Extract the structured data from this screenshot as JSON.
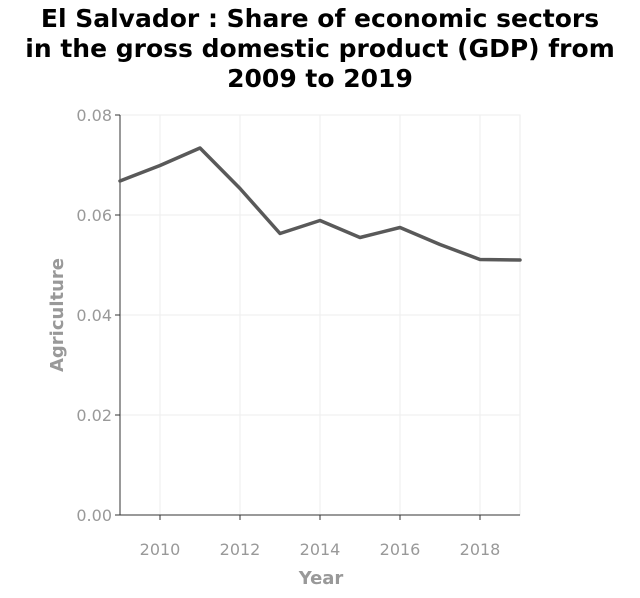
{
  "chart_data": {
    "type": "line",
    "title_lines": [
      "El Salvador : Share of economic sectors",
      "in the gross domestic product (GDP) from",
      "2009 to 2019"
    ],
    "xlabel": "Year",
    "ylabel": "Agriculture",
    "xlim": [
      2009,
      2019
    ],
    "ylim": [
      0,
      0.08
    ],
    "x_ticks": [
      2010,
      2012,
      2014,
      2016,
      2018
    ],
    "y_ticks": [
      "0.00",
      "0.02",
      "0.04",
      "0.06",
      "0.08"
    ],
    "grid": true,
    "line_color": "#595959",
    "series": [
      {
        "x": [
          2009,
          2010,
          2011,
          2012,
          2013,
          2014,
          2015,
          2016,
          2017,
          2018,
          2019
        ],
        "values": [
          0.0668,
          0.0699,
          0.0734,
          0.0653,
          0.0563,
          0.0589,
          0.0555,
          0.0575,
          0.0541,
          0.0511,
          0.051
        ]
      }
    ]
  }
}
